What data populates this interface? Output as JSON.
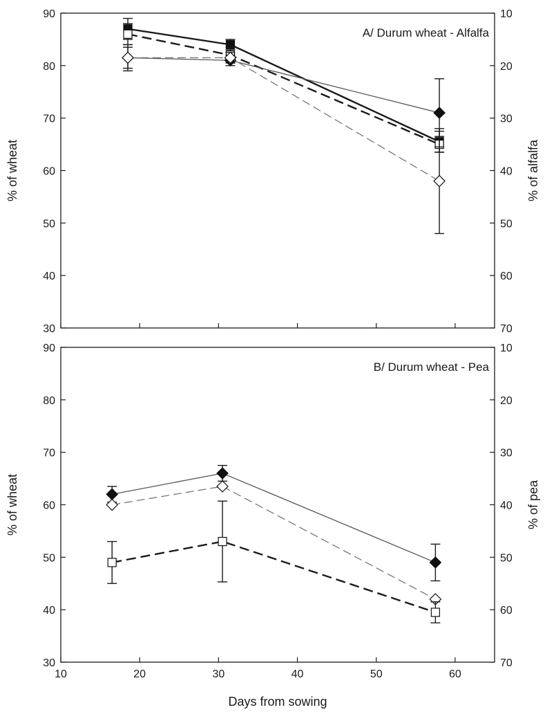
{
  "chart_data": [
    {
      "type": "line",
      "title": "A/ Durum wheat - Alfalfa",
      "xlabel": "",
      "ylabel": "% of wheat",
      "y2label": "% of alfalfa",
      "xlim": [
        10,
        65
      ],
      "ylim": [
        30,
        90
      ],
      "y2lim": [
        70,
        10
      ],
      "xticks": [
        "10",
        "20",
        "30",
        "40",
        "50",
        "60"
      ],
      "yticks": [
        "30",
        "40",
        "50",
        "60",
        "70",
        "80",
        "90"
      ],
      "y2ticks": [
        "70",
        "60",
        "50",
        "40",
        "30",
        "20",
        "10"
      ],
      "grid": false,
      "series": [
        {
          "marker": "filled-square",
          "line": "solid-thick",
          "color": "#1a1a1a",
          "x": [
            18.5,
            31.5,
            58
          ],
          "y": [
            87,
            84,
            65.5
          ],
          "err": [
            2,
            1,
            2
          ]
        },
        {
          "marker": "open-square",
          "line": "dashed-thick",
          "color": "#1a1a1a",
          "x": [
            18.5,
            31.5,
            58
          ],
          "y": [
            86,
            82,
            65
          ],
          "err": [
            2,
            1.5,
            1.5
          ]
        },
        {
          "marker": "filled-diamond",
          "line": "solid-thin",
          "color": "#555555",
          "x": [
            18.5,
            31.5,
            58
          ],
          "y": [
            81.5,
            81,
            71
          ],
          "err": [
            2,
            1,
            6.5
          ]
        },
        {
          "marker": "open-diamond",
          "line": "dashed-thin",
          "color": "#777777",
          "x": [
            18.5,
            31.5,
            58
          ],
          "y": [
            81.5,
            81.5,
            58
          ],
          "err": [
            2.5,
            1,
            10
          ]
        }
      ]
    },
    {
      "type": "line",
      "title": "B/ Durum wheat - Pea",
      "xlabel": "Days from sowing",
      "ylabel": "% of wheat",
      "y2label": "% of pea",
      "xlim": [
        10,
        65
      ],
      "ylim": [
        30,
        90
      ],
      "y2lim": [
        70,
        10
      ],
      "xticks": [
        "10",
        "20",
        "30",
        "40",
        "50",
        "60"
      ],
      "yticks": [
        "30",
        "40",
        "50",
        "60",
        "70",
        "80",
        "90"
      ],
      "y2ticks": [
        "70",
        "60",
        "50",
        "40",
        "30",
        "20",
        "10"
      ],
      "grid": false,
      "series": [
        {
          "marker": "filled-diamond",
          "line": "solid-thin",
          "color": "#555555",
          "x": [
            16.5,
            30.5,
            57.5
          ],
          "y": [
            62,
            66,
            49
          ],
          "err": [
            1.5,
            1.5,
            3.5
          ]
        },
        {
          "marker": "open-diamond",
          "line": "dashed-thin",
          "color": "#777777",
          "x": [
            16.5,
            30.5,
            57.5
          ],
          "y": [
            60,
            63.5,
            42
          ],
          "err": [
            0,
            0,
            0
          ]
        },
        {
          "marker": "open-square",
          "line": "dashed-thick",
          "color": "#1a1a1a",
          "x": [
            16.5,
            30.5,
            57.5
          ],
          "y": [
            49,
            53,
            39.5
          ],
          "err": [
            4,
            7.7,
            2
          ]
        }
      ]
    }
  ]
}
